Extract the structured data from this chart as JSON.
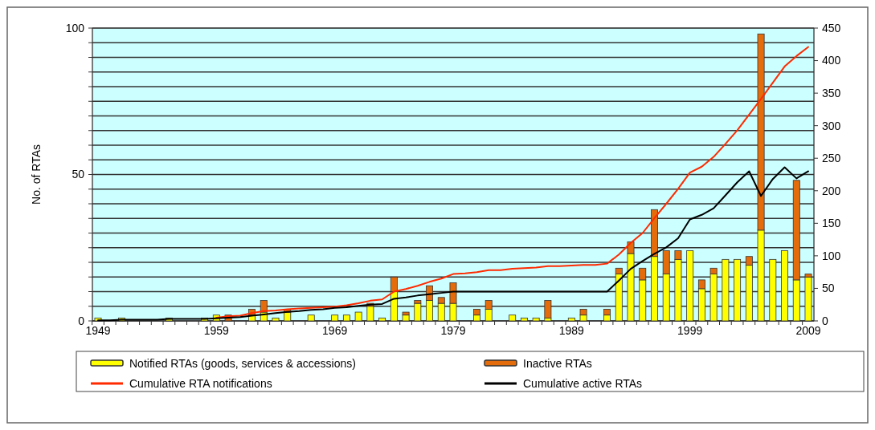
{
  "chart_data": {
    "type": "bar",
    "stacked": true,
    "ylabel": "No. of RTAs",
    "categories": [
      "1949",
      null,
      null,
      null,
      null,
      null,
      null,
      null,
      null,
      null,
      "1959",
      null,
      null,
      null,
      null,
      null,
      null,
      null,
      null,
      null,
      "1969",
      null,
      null,
      null,
      null,
      null,
      null,
      null,
      null,
      null,
      "1979",
      null,
      null,
      null,
      null,
      null,
      null,
      null,
      null,
      null,
      "1989",
      null,
      null,
      null,
      null,
      null,
      null,
      null,
      null,
      null,
      "1999",
      null,
      null,
      null,
      null,
      null,
      null,
      null,
      null,
      null,
      "2009"
    ],
    "series": [
      {
        "name": "Notified RTAs (goods, services & accessions)",
        "color": "#ffff00",
        "values": [
          1,
          0,
          1,
          0,
          0,
          0,
          1,
          0,
          0,
          1,
          2,
          0,
          0,
          2,
          3,
          1,
          3,
          0,
          2,
          0,
          2,
          2,
          3,
          5,
          1,
          10,
          2,
          6,
          7,
          6,
          6,
          0,
          2,
          4,
          0,
          2,
          1,
          1,
          1,
          0,
          1,
          2,
          0,
          2,
          16,
          23,
          14,
          22,
          16,
          21,
          24,
          11,
          16,
          21,
          21,
          19,
          31,
          21,
          24,
          14,
          15
        ]
      },
      {
        "name": "Inactive RTAs",
        "color": "#e46c0a",
        "values": [
          0,
          0,
          0,
          0,
          0,
          0,
          0,
          0,
          0,
          0,
          0,
          2,
          0,
          2,
          4,
          0,
          1,
          0,
          0,
          0,
          0,
          0,
          0,
          1,
          0,
          5,
          1,
          1,
          5,
          2,
          7,
          0,
          2,
          3,
          0,
          0,
          0,
          0,
          6,
          0,
          0,
          2,
          0,
          2,
          2,
          4,
          4,
          16,
          8,
          3,
          0,
          3,
          2,
          0,
          0,
          3,
          67,
          0,
          0,
          34,
          1
        ]
      },
      {
        "name": "Cumulative RTA notifications",
        "type": "line",
        "axis": "y2",
        "color": "#ff2a00",
        "values": [
          null,
          null,
          null,
          null,
          null,
          null,
          null,
          null,
          null,
          null,
          5,
          7,
          8,
          12,
          15,
          16,
          18,
          19,
          20,
          21,
          22,
          24,
          27,
          31,
          33,
          45,
          49,
          54,
          60,
          65,
          72,
          73,
          75,
          78,
          78,
          80,
          81,
          82,
          84,
          84,
          85,
          86,
          86,
          88,
          102,
          120,
          135,
          158,
          180,
          203,
          228,
          237,
          252,
          272,
          293,
          317,
          341,
          366,
          391,
          407,
          421
        ]
      },
      {
        "name": "Cumulative active RTAs",
        "type": "line",
        "axis": "y2",
        "color": "#000000",
        "values": [
          1,
          1,
          2,
          2,
          2,
          2,
          3,
          3,
          3,
          3,
          4,
          5,
          6,
          8,
          10,
          12,
          14,
          15,
          17,
          18,
          20,
          21,
          23,
          25,
          26,
          34,
          36,
          39,
          41,
          43,
          45,
          45,
          45,
          45,
          45,
          45,
          45,
          45,
          45,
          45,
          45,
          45,
          45,
          45,
          62,
          80,
          92,
          103,
          113,
          127,
          156,
          163,
          173,
          193,
          213,
          230,
          192,
          218,
          236,
          219,
          230
        ]
      }
    ],
    "ylim": [
      0,
      100
    ],
    "yticks": [
      0,
      {
        "value": 5,
        "label": null
      },
      {
        "value": 10,
        "label": null
      },
      {
        "value": 15,
        "label": null
      },
      {
        "value": 20,
        "label": null
      },
      {
        "value": 25,
        "label": null
      },
      {
        "value": 30,
        "label": null
      },
      {
        "value": 35,
        "label": null
      },
      {
        "value": 40,
        "label": null
      },
      {
        "value": 45,
        "label": null
      },
      50,
      {
        "value": 55,
        "label": null
      },
      {
        "value": 60,
        "label": null
      },
      {
        "value": 65,
        "label": null
      },
      {
        "value": 70,
        "label": null
      },
      {
        "value": 75,
        "label": null
      },
      {
        "value": 80,
        "label": null
      },
      {
        "value": 85,
        "label": null
      },
      {
        "value": 90,
        "label": null
      },
      {
        "value": 95,
        "label": null
      },
      100
    ],
    "y2lim": [
      0,
      450
    ],
    "y2ticks": [
      0,
      50,
      100,
      150,
      200,
      250,
      300,
      350,
      400,
      450
    ],
    "grid": "y",
    "legend": "bottom"
  }
}
